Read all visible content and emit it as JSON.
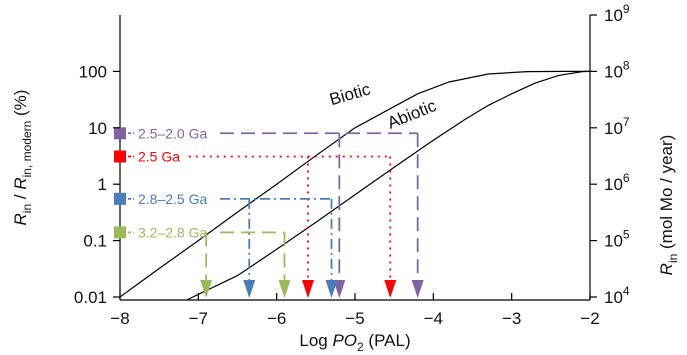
{
  "chart_data": {
    "type": "line",
    "xlabel_parts": {
      "prefix": "Log ",
      "italic": "PO",
      "sub": "2",
      "suffix": " (PAL)"
    },
    "ylabel_left_parts": {
      "r1": "R",
      "sub1": "in",
      "slash": " / ",
      "r2": "R",
      "sub2": "in, modern",
      "suffix": " (%)"
    },
    "ylabel_right_parts": {
      "r": "R",
      "sub": "in",
      "suffix": " (mol Mo / year)"
    },
    "xlim": [
      -8,
      -2
    ],
    "ylim_percent": [
      0.01,
      100
    ],
    "yscale": "log",
    "x_ticks": [
      {
        "v": -8,
        "label": "−8"
      },
      {
        "v": -7,
        "label": "−7"
      },
      {
        "v": -6,
        "label": "−6"
      },
      {
        "v": -5,
        "label": "−5"
      },
      {
        "v": -4,
        "label": "−4"
      },
      {
        "v": -3,
        "label": "−3"
      },
      {
        "v": -2,
        "label": "−2"
      }
    ],
    "y_ticks_left": [
      {
        "v": 0.01,
        "label": "0.01"
      },
      {
        "v": 0.1,
        "label": "0.1"
      },
      {
        "v": 1,
        "label": "1"
      },
      {
        "v": 10,
        "label": "10"
      },
      {
        "v": 100,
        "label": "100"
      }
    ],
    "y_ticks_right": [
      {
        "v": 0.01,
        "base": "10",
        "exp": "4"
      },
      {
        "v": 0.1,
        "base": "10",
        "exp": "5"
      },
      {
        "v": 1,
        "base": "10",
        "exp": "6"
      },
      {
        "v": 10,
        "base": "10",
        "exp": "7"
      },
      {
        "v": 100,
        "base": "10",
        "exp": "8"
      },
      {
        "v": 1000,
        "base": "10",
        "exp": "9"
      }
    ],
    "series": [
      {
        "name": "Biotic",
        "color": "#000000",
        "points": [
          [
            -8,
            0.01
          ],
          [
            -7.5,
            0.032
          ],
          [
            -7,
            0.1
          ],
          [
            -6.5,
            0.32
          ],
          [
            -6,
            1
          ],
          [
            -5.5,
            3.2
          ],
          [
            -5,
            10
          ],
          [
            -4.6,
            20
          ],
          [
            -4.2,
            40
          ],
          [
            -3.8,
            65
          ],
          [
            -3.3,
            90
          ],
          [
            -2.8,
            99
          ],
          [
            -2.3,
            100
          ],
          [
            -2,
            100
          ]
        ]
      },
      {
        "name": "Abiotic",
        "color": "#000000",
        "points": [
          [
            -7.15,
            0.006
          ],
          [
            -6.5,
            0.024
          ],
          [
            -6,
            0.07
          ],
          [
            -5.5,
            0.21
          ],
          [
            -5,
            0.65
          ],
          [
            -4.5,
            2
          ],
          [
            -4,
            6
          ],
          [
            -3.6,
            14
          ],
          [
            -3.3,
            25
          ],
          [
            -3,
            40
          ],
          [
            -2.7,
            62
          ],
          [
            -2.4,
            85
          ],
          [
            -2.1,
            99
          ],
          [
            -2,
            100
          ]
        ]
      }
    ],
    "annotations": [
      {
        "label": "2.5–2.0 Ga",
        "color": "#8064a2",
        "y": 8,
        "style": "dash",
        "x_arrows": [
          -5.2,
          -4.2
        ],
        "x_line_end": -4.2
      },
      {
        "label": "2.5 Ga",
        "color": "#ff0000",
        "y": 3.1,
        "style": "dot",
        "x_arrows": [
          -5.6,
          -4.55
        ],
        "x_line_end": -4.55
      },
      {
        "label": "2.8–2.5 Ga",
        "color": "#4a7ebb",
        "y": 0.55,
        "style": "dashdot",
        "x_arrows": [
          -6.35,
          -5.3
        ],
        "x_line_end": -5.3
      },
      {
        "label": "3.2–2.8 Ga",
        "color": "#9bbb59",
        "y": 0.14,
        "style": "dash",
        "x_arrows": [
          -6.9,
          -5.9
        ],
        "x_line_end": -5.9
      }
    ]
  }
}
